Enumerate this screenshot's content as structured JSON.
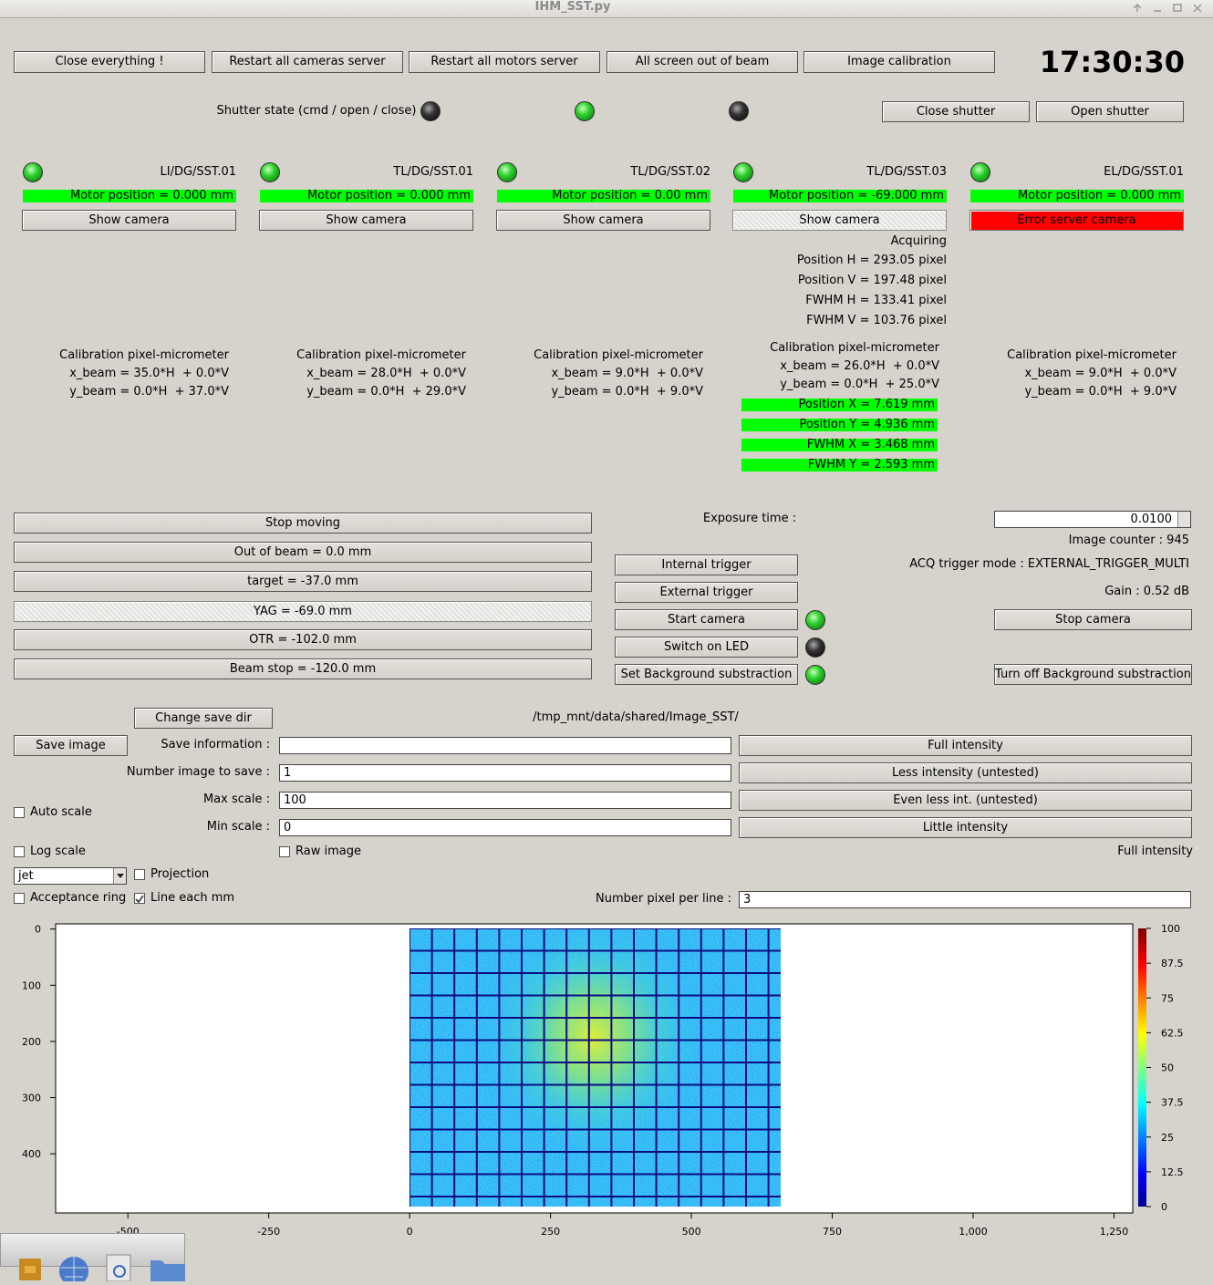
{
  "window_title": "IHM_SST.py",
  "top_buttons": [
    "Close everything !",
    "Restart all cameras server",
    "Restart all motors server",
    "All screen out of beam",
    "Image calibration"
  ],
  "clock": "17:30:30",
  "shutter": {
    "label": "Shutter state (cmd / open / close)",
    "close": "Close shutter",
    "open": "Open shutter"
  },
  "stations": [
    {
      "name": "LI/DG/SST.01",
      "motor": "Motor position = 0.000 mm",
      "button": "Show camera",
      "calibration": [
        "Calibration pixel-micrometer",
        "x_beam = 35.0*H  + 0.0*V",
        "y_beam = 0.0*H  + 37.0*V"
      ]
    },
    {
      "name": "TL/DG/SST.01",
      "motor": "Motor position = 0.000 mm",
      "button": "Show camera",
      "calibration": [
        "Calibration pixel-micrometer",
        "x_beam = 28.0*H  + 0.0*V",
        "y_beam = 0.0*H  + 29.0*V"
      ]
    },
    {
      "name": "TL/DG/SST.02",
      "motor": "Motor position = 0.00 mm",
      "button": "Show camera",
      "calibration": [
        "Calibration pixel-micrometer",
        "x_beam = 9.0*H  + 0.0*V",
        "y_beam = 0.0*H  + 9.0*V"
      ]
    },
    {
      "name": "TL/DG/SST.03",
      "motor": "Motor position = -69.000 mm",
      "button": "Show camera",
      "calibration": [
        "Calibration pixel-micrometer",
        "x_beam = 26.0*H  + 0.0*V",
        "y_beam = 0.0*H  + 25.0*V"
      ]
    },
    {
      "name": "EL/DG/SST.01",
      "motor": "Motor position = 0.000 mm",
      "button": "Error server camera",
      "calibration": [
        "Calibration pixel-micrometer",
        "x_beam = 9.0*H  + 0.0*V",
        "y_beam = 0.0*H  + 9.0*V"
      ]
    }
  ],
  "acquisition": [
    "Acquiring",
    "Position H = 293.05 pixel",
    "Position V = 197.48 pixel",
    "FWHM H = 133.41 pixel",
    "FWHM V = 103.76 pixel"
  ],
  "beam": [
    "Position X = 7.619 mm",
    "Position Y = 4.936 mm",
    "FWHM X = 3.468 mm",
    "FWHM Y = 2.593 mm"
  ],
  "motor_buttons": [
    "Stop moving",
    "Out of beam = 0.0 mm",
    "target = -37.0 mm",
    "YAG = -69.0 mm",
    "OTR = -102.0 mm",
    "Beam stop = -120.0 mm"
  ],
  "camera": {
    "exposure_label": "Exposure time :",
    "exposure": "0.0100",
    "image_counter": "Image counter : 945",
    "trigger_buttons": [
      "Internal trigger",
      "External trigger",
      "Start camera",
      "Switch on LED",
      "Set Background substraction"
    ],
    "trigger_mode": "ACQ trigger mode : EXTERNAL_TRIGGER_MULTI",
    "gain": "Gain : 0.52 dB",
    "stop": "Stop camera",
    "background_off": "Turn off Background substraction"
  },
  "save": {
    "change_dir": "Change save dir",
    "path": "/tmp_mnt/data/shared/Image_SST/",
    "save_image": "Save image",
    "fields": [
      {
        "label": "Save information :"
      },
      {
        "label": "Number image to save :",
        "value": "1"
      },
      {
        "label": "Max scale :",
        "value": "100"
      },
      {
        "label": "Min scale :",
        "value": "0"
      }
    ]
  },
  "intensity_buttons": [
    "Full intensity",
    "Less intensity (untested)",
    "Even less int. (untested)",
    "Little intensity"
  ],
  "intensity_state": "Full intensity",
  "options": {
    "auto_scale": "Auto scale",
    "log_scale": "Log scale",
    "raw_image": "Raw image",
    "colormap": "jet",
    "projection": "Projection",
    "acceptance_ring": "Acceptance ring",
    "line_each_mm": "Line each mm",
    "pixel_per_line_label": "Number pixel per line :",
    "pixel_per_line": "3"
  },
  "plot": {
    "xlim": [
      -625,
      1280
    ],
    "xticks": [
      -500,
      -250,
      0,
      250,
      500,
      750,
      {
        "value": 1000,
        "label": "1,000"
      },
      {
        "value": 1250,
        "label": "1,250"
      }
    ],
    "ylim": [
      -6,
      502
    ],
    "yticks": [
      0,
      100,
      200,
      300,
      400
    ],
    "colorbar": {
      "lim": [
        0,
        100
      ],
      "ticks": [
        0,
        12.5,
        25,
        37.5,
        50,
        62.5,
        75,
        87.5,
        100
      ]
    }
  }
}
